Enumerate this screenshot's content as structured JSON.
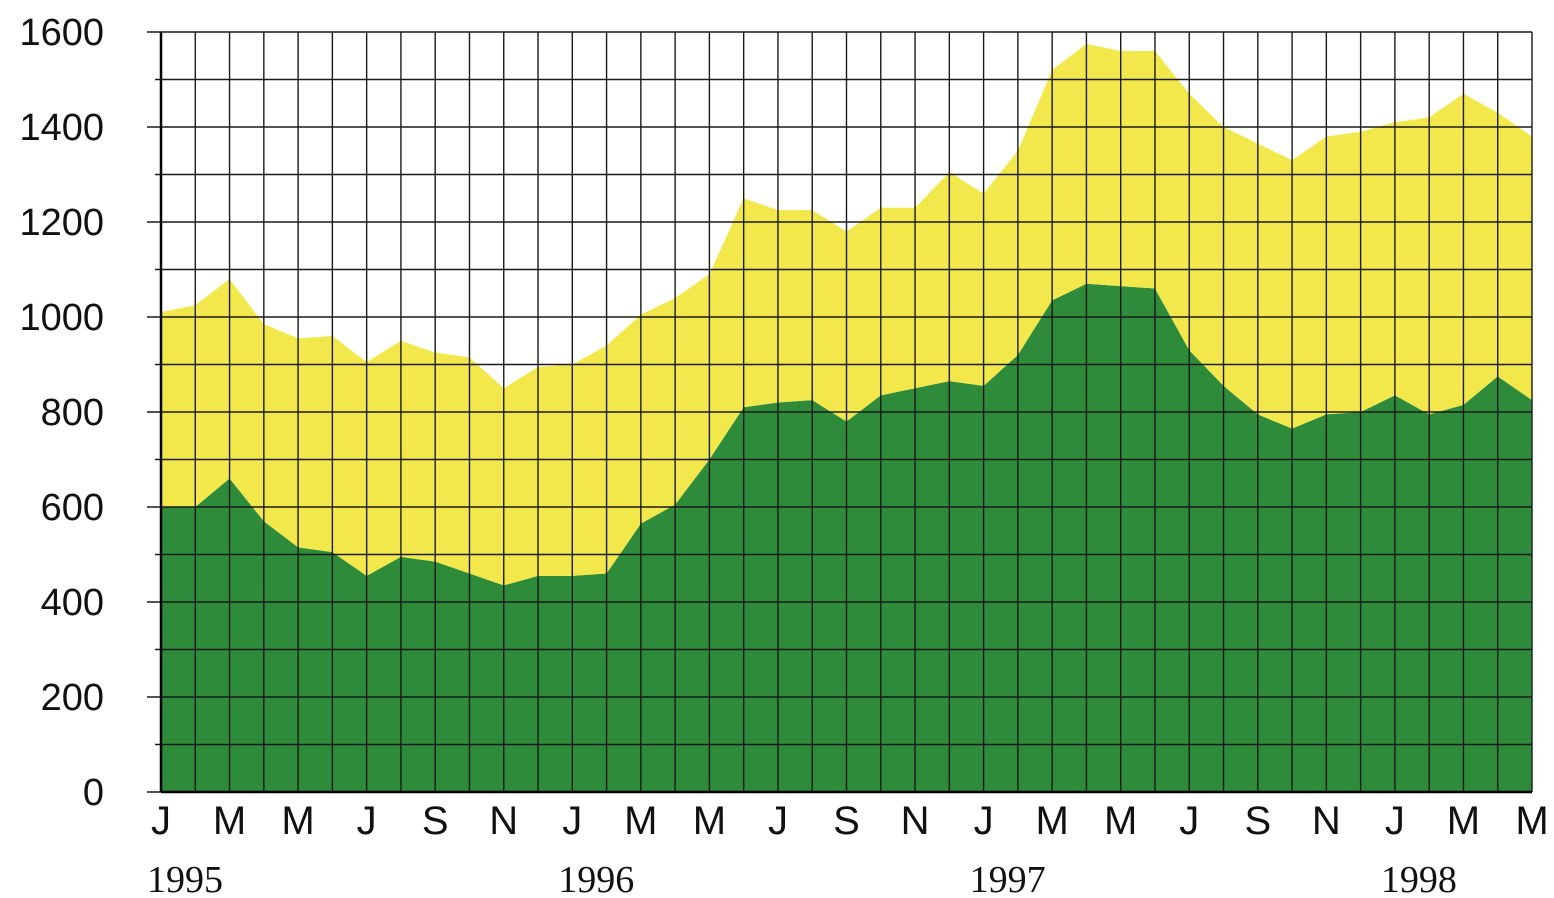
{
  "chart_data": {
    "type": "area",
    "stacked": true,
    "grid": true,
    "legend": "none",
    "title": "",
    "xlabel": "",
    "ylabel": "",
    "ylim": [
      0,
      1600
    ],
    "yticks": [
      0,
      200,
      400,
      600,
      800,
      1000,
      1200,
      1400,
      1600
    ],
    "x_tick_labels": [
      "J",
      "M",
      "M",
      "J",
      "S",
      "N",
      "J",
      "M",
      "M",
      "J",
      "S",
      "N",
      "J",
      "M",
      "M",
      "J",
      "S",
      "N",
      "J",
      "M",
      "M"
    ],
    "year_labels": [
      {
        "label": "1995",
        "at_tick": 0
      },
      {
        "label": "1996",
        "at_tick": 6
      },
      {
        "label": "1997",
        "at_tick": 12
      },
      {
        "label": "1998",
        "at_tick": 18
      }
    ],
    "x_months": 41,
    "series": [
      {
        "color": "#2e8b3a",
        "values": [
          600,
          600,
          660,
          570,
          515,
          505,
          455,
          495,
          485,
          460,
          435,
          455,
          455,
          460,
          565,
          605,
          700,
          810,
          820,
          825,
          780,
          835,
          850,
          865,
          855,
          920,
          1035,
          1070,
          1065,
          1060,
          930,
          855,
          795,
          765,
          795,
          800,
          835,
          795,
          815,
          875,
          825
        ]
      },
      {
        "color": "#f2e84c",
        "values": [
          410,
          425,
          420,
          415,
          440,
          455,
          450,
          455,
          440,
          455,
          415,
          440,
          445,
          480,
          440,
          435,
          390,
          440,
          405,
          400,
          400,
          395,
          380,
          440,
          405,
          430,
          485,
          505,
          495,
          500,
          540,
          545,
          570,
          565,
          585,
          590,
          575,
          625,
          655,
          555,
          555
        ]
      }
    ]
  }
}
